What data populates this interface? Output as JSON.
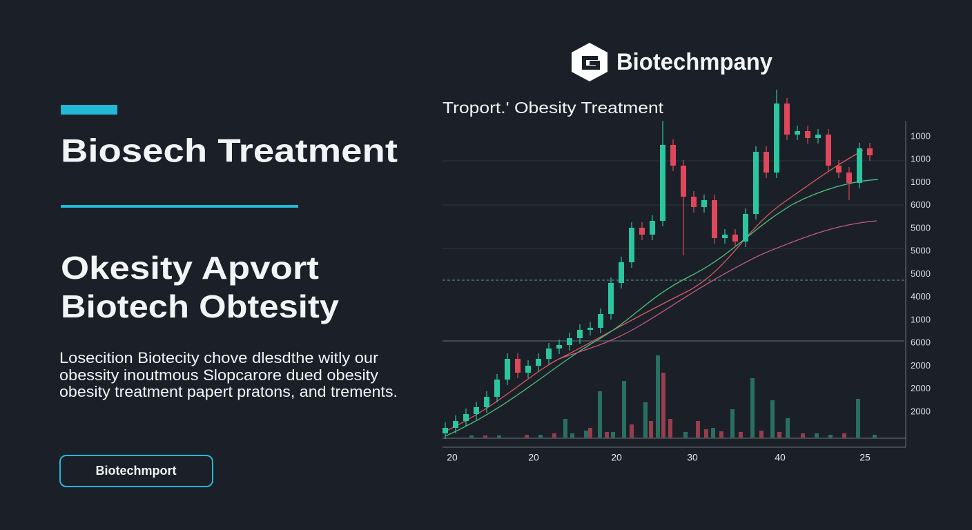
{
  "header": {
    "logo_text": "Biotechmpany"
  },
  "hero": {
    "title": "Biosech Treatment",
    "subtitle_lines": [
      "Okesity Apvort",
      "Biotech Obtesity"
    ],
    "description_lines": [
      "Losecition Biotecity chove dlesdthe witly our",
      "obessity inoutmous Slopcarore dued obesity",
      "obesity treatment papert pratons, and trements."
    ],
    "button": "Biotechmport"
  },
  "chart": {
    "title": "Troport.' Obesity Treatment",
    "y_axis_labels": [
      "1000",
      "1000",
      "1000",
      "6000",
      "5000",
      "5000",
      "5000",
      "4000",
      "1000",
      "6000",
      "2000",
      "2000",
      "2000"
    ],
    "x_axis_labels": [
      "20",
      "20",
      "20",
      "30",
      "40",
      "25"
    ]
  }
}
